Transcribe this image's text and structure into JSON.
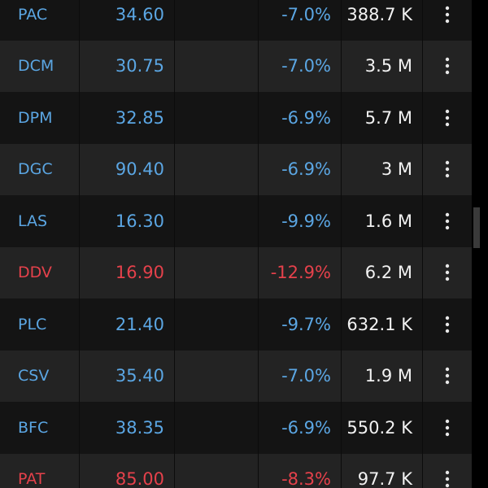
{
  "table": {
    "rows": [
      {
        "symbol": "PAC",
        "price": "34.60",
        "change": "-7.0%",
        "volume": "388.7 K",
        "color": "#5ba6e3"
      },
      {
        "symbol": "DCM",
        "price": "30.75",
        "change": "-7.0%",
        "volume": "3.5 M",
        "color": "#5ba6e3"
      },
      {
        "symbol": "DPM",
        "price": "32.85",
        "change": "-6.9%",
        "volume": "5.7 M",
        "color": "#5ba6e3"
      },
      {
        "symbol": "DGC",
        "price": "90.40",
        "change": "-6.9%",
        "volume": "3 M",
        "color": "#5ba6e3"
      },
      {
        "symbol": "LAS",
        "price": "16.30",
        "change": "-9.9%",
        "volume": "1.6 M",
        "color": "#5ba6e3"
      },
      {
        "symbol": "DDV",
        "price": "16.90",
        "change": "-12.9%",
        "volume": "6.2 M",
        "color": "#e5414b"
      },
      {
        "symbol": "PLC",
        "price": "21.40",
        "change": "-9.7%",
        "volume": "632.1 K",
        "color": "#5ba6e3"
      },
      {
        "symbol": "CSV",
        "price": "35.40",
        "change": "-7.0%",
        "volume": "1.9 M",
        "color": "#5ba6e3"
      },
      {
        "symbol": "BFC",
        "price": "38.35",
        "change": "-6.9%",
        "volume": "550.2 K",
        "color": "#5ba6e3"
      },
      {
        "symbol": "PAT",
        "price": "85.00",
        "change": "-8.3%",
        "volume": "97.7 K",
        "color": "#e5414b"
      }
    ]
  }
}
